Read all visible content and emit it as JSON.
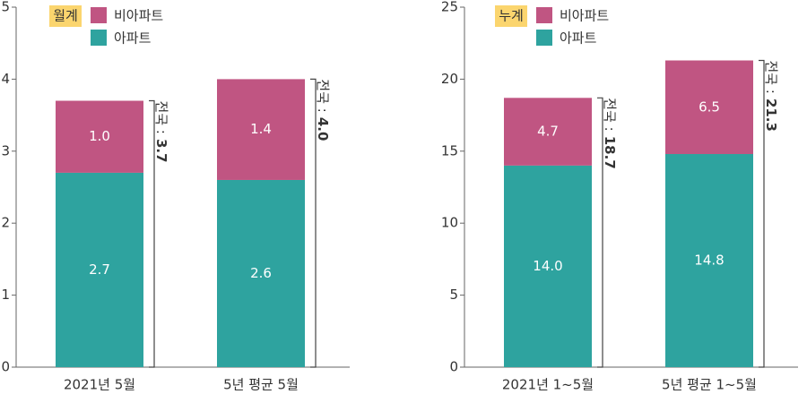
{
  "chart_data": [
    {
      "type": "bar",
      "stacked": true,
      "badge": "월계",
      "categories": [
        "2021년 5월",
        "5년 평균 5월"
      ],
      "series": [
        {
          "name": "아파트",
          "color": "#2ea39f",
          "values": [
            2.7,
            2.6
          ],
          "value_labels": [
            "2.7",
            "2.6"
          ]
        },
        {
          "name": "비아파트",
          "color": "#c05582",
          "values": [
            1.0,
            1.4
          ],
          "value_labels": [
            "1.0",
            "1.4"
          ]
        }
      ],
      "total_prefix": "전국 :",
      "totals": [
        3.7,
        4.0
      ],
      "total_labels": [
        "3.7",
        "4.0"
      ],
      "ylim": [
        0,
        5
      ],
      "yticks": [
        0,
        1,
        2,
        3,
        4,
        5
      ]
    },
    {
      "type": "bar",
      "stacked": true,
      "badge": "누계",
      "categories": [
        "2021년 1~5월",
        "5년 평균 1~5월"
      ],
      "series": [
        {
          "name": "아파트",
          "color": "#2ea39f",
          "values": [
            14.0,
            14.8
          ],
          "value_labels": [
            "14.0",
            "14.8"
          ]
        },
        {
          "name": "비아파트",
          "color": "#c05582",
          "values": [
            4.7,
            6.5
          ],
          "value_labels": [
            "4.7",
            "6.5"
          ]
        }
      ],
      "total_prefix": "전국 :",
      "totals": [
        18.7,
        21.3
      ],
      "total_labels": [
        "18.7",
        "21.3"
      ],
      "ylim": [
        0,
        25
      ],
      "yticks": [
        0,
        5,
        10,
        15,
        20,
        25
      ]
    }
  ]
}
